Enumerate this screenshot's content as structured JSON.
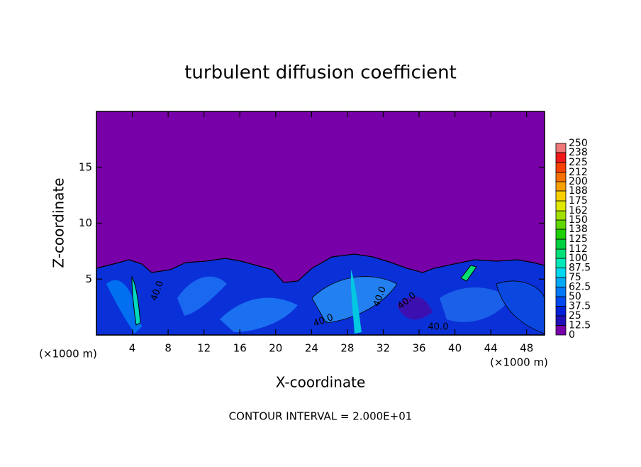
{
  "chart_data": {
    "type": "contour",
    "title": "turbulent diffusion coefficient",
    "x_label": "X-coordinate",
    "y_label": "Z-coordinate",
    "x_unit_label": "(×1000 m)",
    "footer": "CONTOUR INTERVAL = 2.000E+01",
    "xlim": [
      0,
      50
    ],
    "xticks": [
      4,
      8,
      12,
      16,
      20,
      24,
      28,
      32,
      36,
      40,
      44,
      48
    ],
    "ylim": [
      0,
      20
    ],
    "yticks": [
      5,
      10,
      15
    ],
    "contour_labels": [
      "40.0",
      "40.0",
      "40.0",
      "40.0",
      "40.0"
    ],
    "colorbar": {
      "levels": [
        0,
        12.5,
        25,
        37.5,
        50,
        62.5,
        75,
        87.5,
        100,
        112,
        125,
        138,
        150,
        162,
        175,
        188,
        200,
        212,
        225,
        238,
        250
      ],
      "colors": [
        "#7800a8",
        "#2010b8",
        "#0020d8",
        "#0048f0",
        "#0078f8",
        "#00a8f8",
        "#00d8f0",
        "#00e8b8",
        "#00e078",
        "#00d040",
        "#20d000",
        "#60d800",
        "#a0e000",
        "#e0e800",
        "#f8d000",
        "#f8a000",
        "#f87000",
        "#f84000",
        "#f01818",
        "#f07878"
      ]
    }
  }
}
